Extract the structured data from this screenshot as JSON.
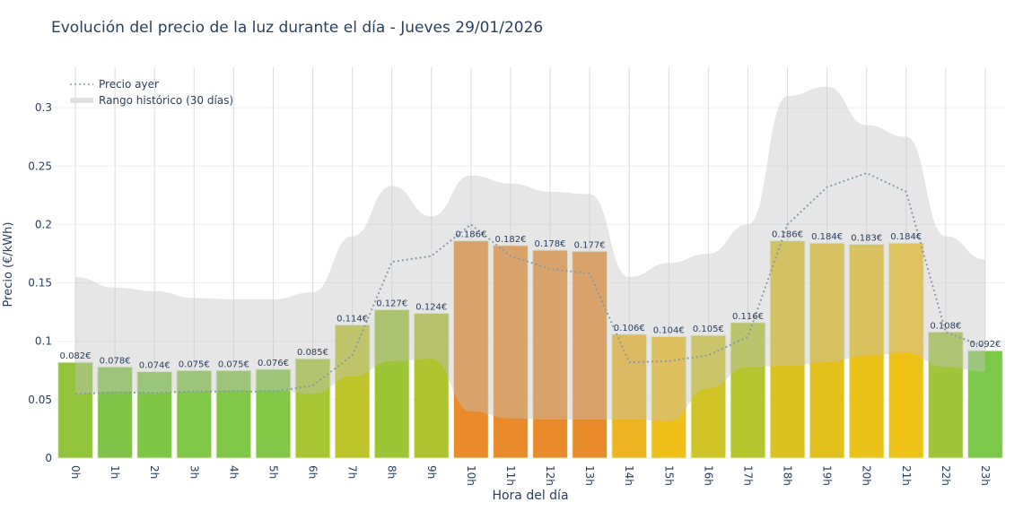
{
  "chart_data": {
    "type": "bar",
    "title": "Evolución del precio de la luz durante el día - Jueves 29/01/2026",
    "xlabel": "Hora del día",
    "ylabel": "Precio (€/kWh)",
    "ylim": [
      0,
      0.335
    ],
    "yticks": [
      0,
      0.05,
      0.1,
      0.15,
      0.2,
      0.25,
      0.3
    ],
    "ytick_labels": [
      "0",
      "0.05",
      "0.1",
      "0.15",
      "0.2",
      "0.25",
      "0.3"
    ],
    "grid": true,
    "legend_placement": "top-left",
    "categories": [
      "0h",
      "1h",
      "2h",
      "3h",
      "4h",
      "5h",
      "6h",
      "7h",
      "8h",
      "9h",
      "10h",
      "11h",
      "12h",
      "13h",
      "14h",
      "15h",
      "16h",
      "17h",
      "18h",
      "19h",
      "20h",
      "21h",
      "22h",
      "23h"
    ],
    "values": [
      0.082,
      0.078,
      0.074,
      0.075,
      0.075,
      0.076,
      0.085,
      0.114,
      0.127,
      0.124,
      0.186,
      0.182,
      0.178,
      0.177,
      0.106,
      0.104,
      0.105,
      0.116,
      0.186,
      0.184,
      0.183,
      0.184,
      0.108,
      0.092
    ],
    "value_labels": [
      "0.082€",
      "0.078€",
      "0.074€",
      "0.075€",
      "0.075€",
      "0.076€",
      "0.085€",
      "0.114€",
      "0.127€",
      "0.124€",
      "0.186€",
      "0.182€",
      "0.178€",
      "0.177€",
      "0.106€",
      "0.104€",
      "0.105€",
      "0.116€",
      "0.186€",
      "0.184€",
      "0.183€",
      "0.184€",
      "0.108€",
      "0.092€"
    ],
    "bar_colors": [
      "#90c43a",
      "#80c447",
      "#7fc647",
      "#80c647",
      "#80c647",
      "#82c646",
      "#a8c532",
      "#bec52a",
      "#9cc535",
      "#aec32e",
      "#e98b2a",
      "#e98b2a",
      "#e98b2a",
      "#e98b2a",
      "#eeb320",
      "#f0c01a",
      "#d0c426",
      "#b4c52e",
      "#dcc21e",
      "#e3c11c",
      "#eac21a",
      "#efc218",
      "#a0c53a",
      "#7cc94a"
    ],
    "series": [
      {
        "name": "Precio ayer",
        "type": "line",
        "style": "dotted",
        "color": "#8a9ba3",
        "values": [
          0.055,
          0.056,
          0.056,
          0.057,
          0.057,
          0.057,
          0.062,
          0.088,
          0.168,
          0.173,
          0.2,
          0.173,
          0.162,
          0.158,
          0.082,
          0.083,
          0.088,
          0.104,
          0.2,
          0.232,
          0.244,
          0.228,
          0.108,
          0.095
        ]
      },
      {
        "name": "Rango histórico (30 días)",
        "type": "area",
        "color": "#d3d3d3",
        "upper": [
          0.155,
          0.146,
          0.143,
          0.137,
          0.136,
          0.136,
          0.142,
          0.19,
          0.233,
          0.207,
          0.242,
          0.235,
          0.228,
          0.226,
          0.155,
          0.167,
          0.175,
          0.2,
          0.31,
          0.318,
          0.285,
          0.275,
          0.19,
          0.17
        ],
        "lower": [
          0.055,
          0.057,
          0.056,
          0.057,
          0.058,
          0.058,
          0.055,
          0.07,
          0.083,
          0.085,
          0.04,
          0.034,
          0.033,
          0.033,
          0.033,
          0.032,
          0.06,
          0.078,
          0.079,
          0.082,
          0.088,
          0.09,
          0.078,
          0.074
        ]
      }
    ]
  }
}
